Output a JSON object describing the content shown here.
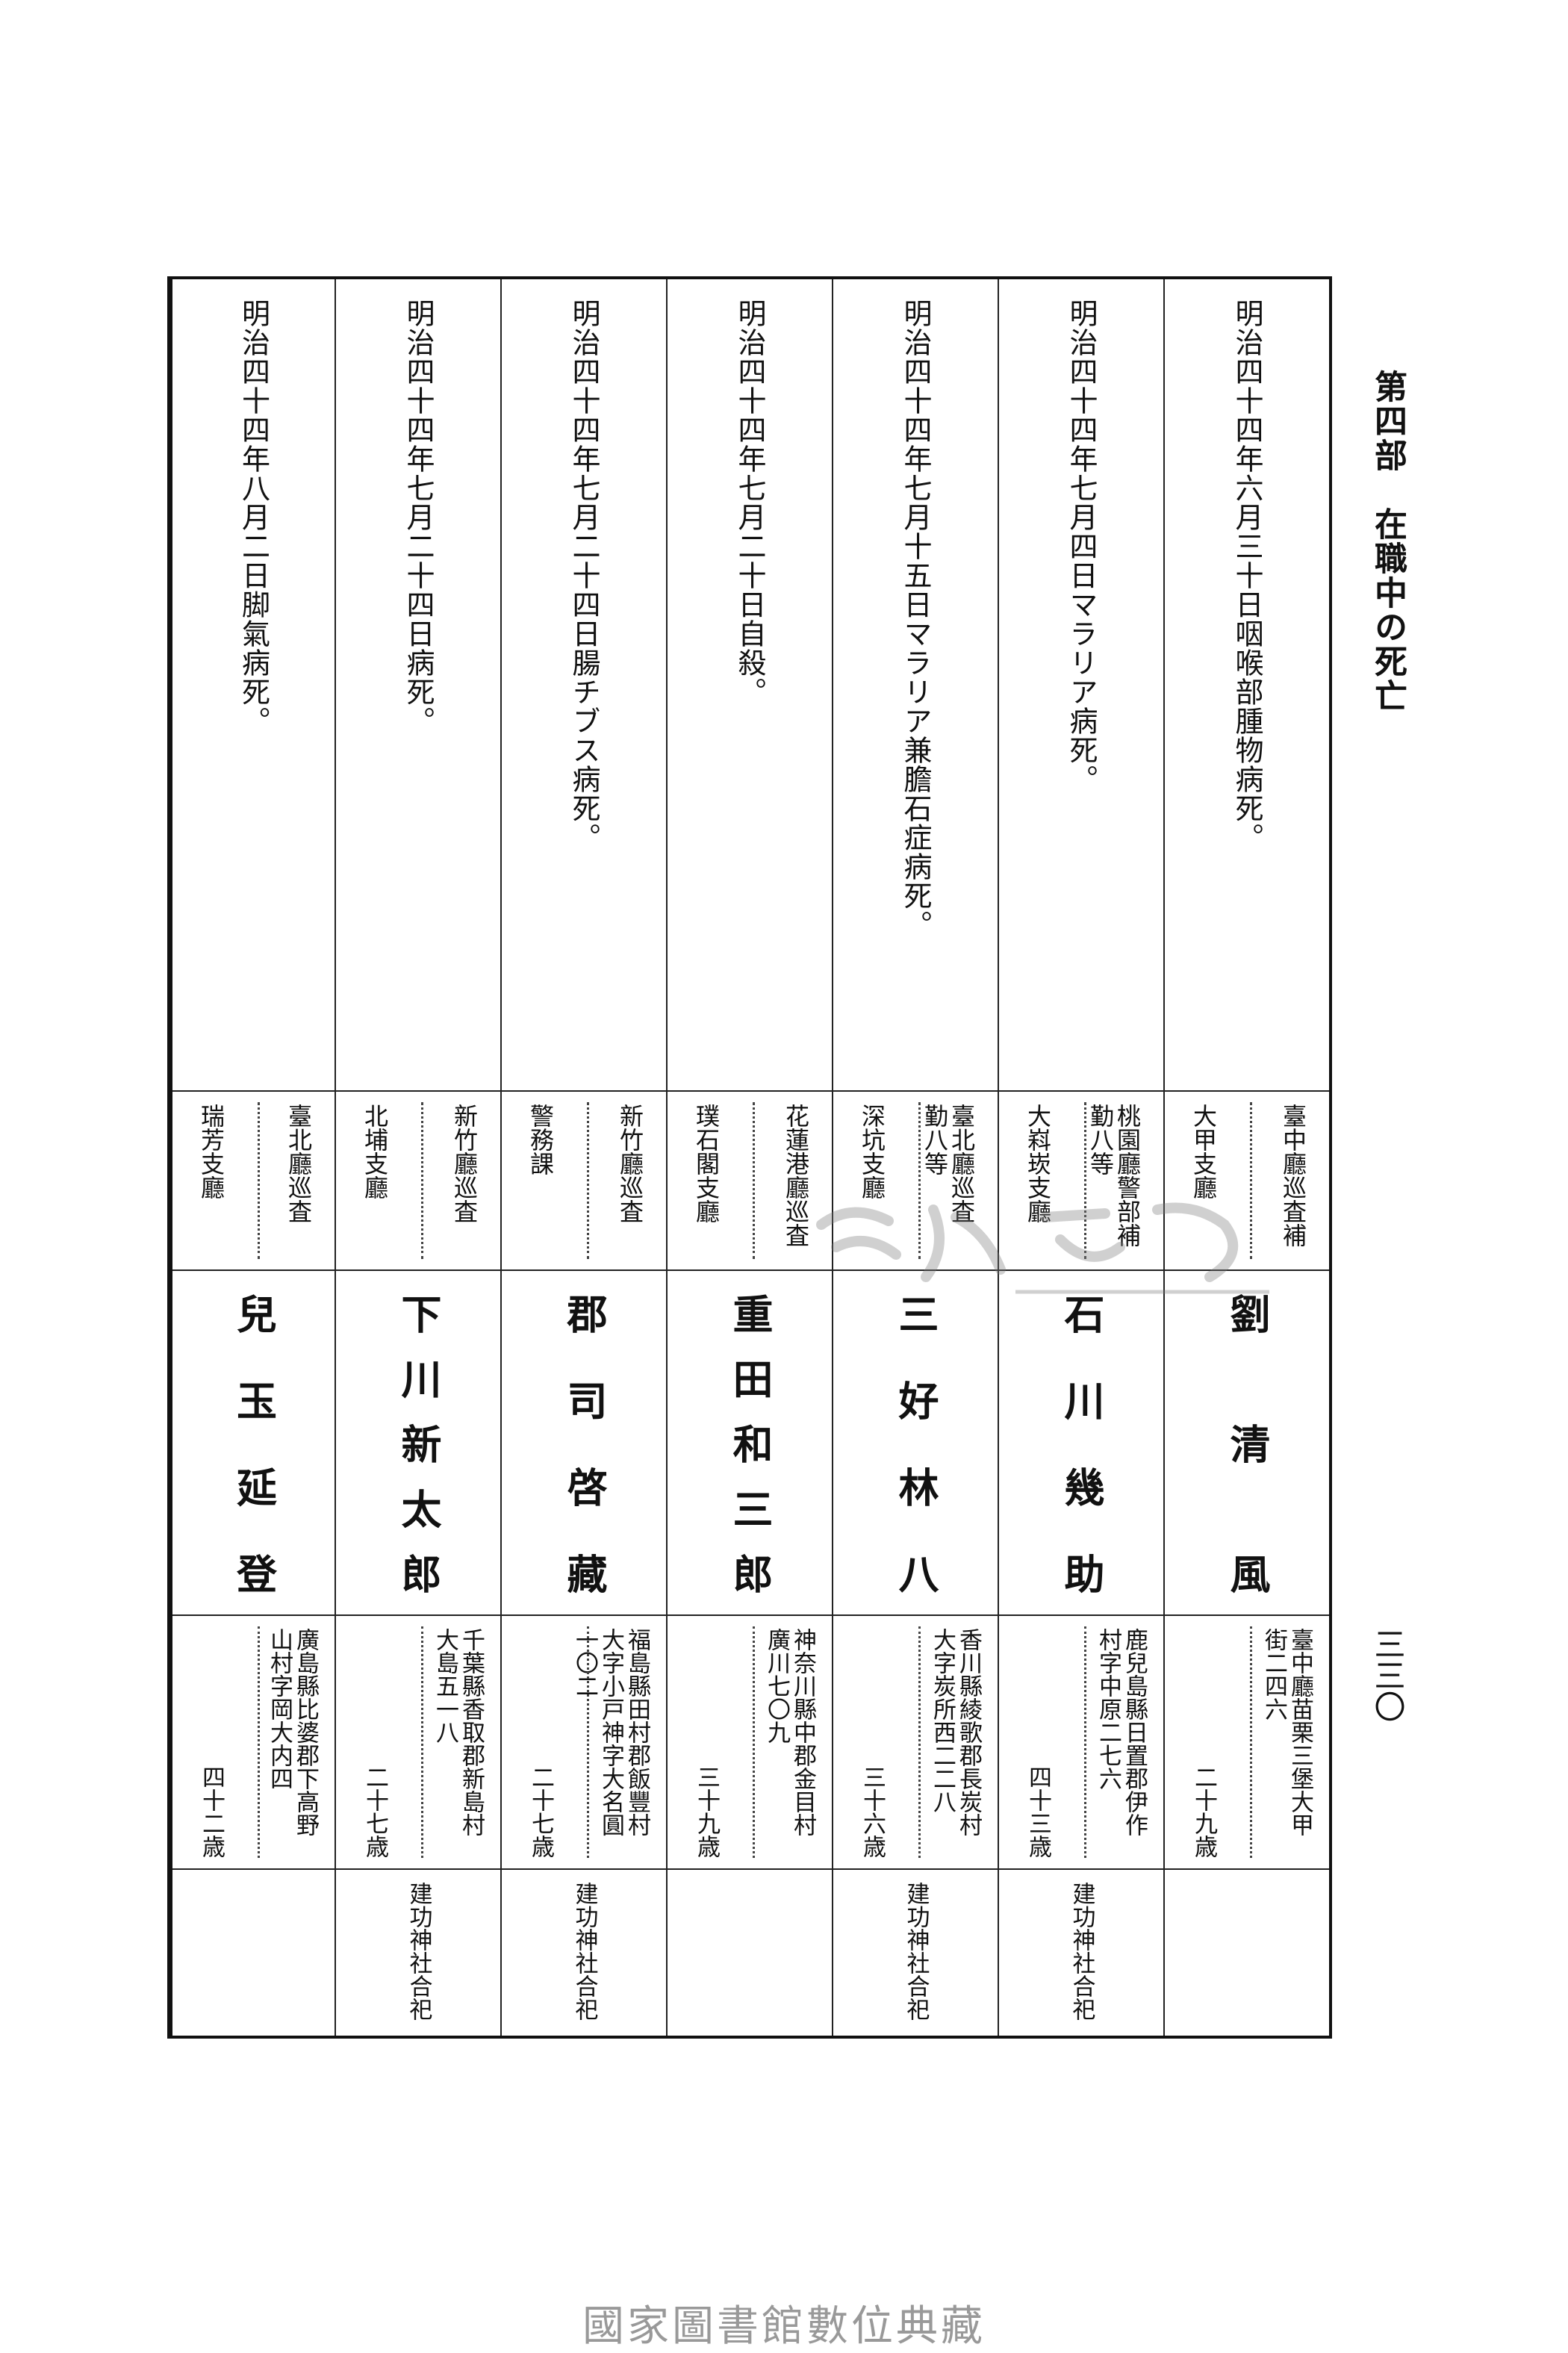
{
  "header": {
    "title": "第四部　在職中の死亡",
    "page_number": "三三〇"
  },
  "columns": [
    {
      "date": "明治四十四年六月三十日咽喉部腫物病死。",
      "position": [
        "臺中廳巡査補"
      ],
      "office": "大甲支廳",
      "name": "劉清風",
      "address": [
        "臺中廳苗栗三堡大甲",
        "街二四六"
      ],
      "age": "二十九歳",
      "note": ""
    },
    {
      "date": "明治四十四年七月四日マラリア病死。",
      "position": [
        "桃園廳警部補",
        "勤八等"
      ],
      "office": "大嵙崁支廳",
      "name": "石川幾助",
      "address": [
        "鹿兒島縣日置郡伊作",
        "村字中原二七六"
      ],
      "age": "四十三歳",
      "note": "建功神社合祀"
    },
    {
      "date": "明治四十四年七月十五日マラリア兼膽石症病死。",
      "position": [
        "臺北廳巡査",
        "勤八等"
      ],
      "office": "深坑支廳",
      "name": "三好林八",
      "address": [
        "香川縣綾歌郡長炭村",
        "大字炭所西二二八"
      ],
      "age": "三十六歳",
      "note": "建功神社合祀"
    },
    {
      "date": "明治四十四年七月二十日自殺。",
      "position": [
        "花蓮港廳巡査"
      ],
      "office": "璞石閣支廳",
      "name": "重田和三郎",
      "address": [
        "神奈川縣中郡金目村",
        "廣川七〇九"
      ],
      "age": "三十九歳",
      "note": ""
    },
    {
      "date": "明治四十四年七月二十四日腸チブス病死。",
      "position": [
        "新竹廳巡査"
      ],
      "office": "警務課",
      "name": "郡司啓藏",
      "address": [
        "福島縣田村郡飯豐村",
        "大字小戸神字大名圓",
        "一〇二"
      ],
      "age": "二十七歳",
      "note": "建功神社合祀"
    },
    {
      "date": "明治四十四年七月二十四日病死。",
      "position": [
        "新竹廳巡査"
      ],
      "office": "北埔支廳",
      "name": "下川新太郎",
      "address": [
        "千葉縣香取郡新島村",
        "大島五一八"
      ],
      "age": "二十七歳",
      "note": "建功神社合祀"
    },
    {
      "date": "明治四十四年八月二日脚氣病死。",
      "position": [
        "臺北廳巡査"
      ],
      "office": "瑞芳支廳",
      "name": "兒玉延登",
      "address": [
        "廣島縣比婆郡下高野",
        "山村字岡大内四"
      ],
      "age": "四十二歳",
      "note": ""
    }
  ],
  "watermark": {
    "cjk": "臺灣記憶",
    "en": "Taiwan Memory"
  },
  "footer": "國家圖書館數位典藏"
}
